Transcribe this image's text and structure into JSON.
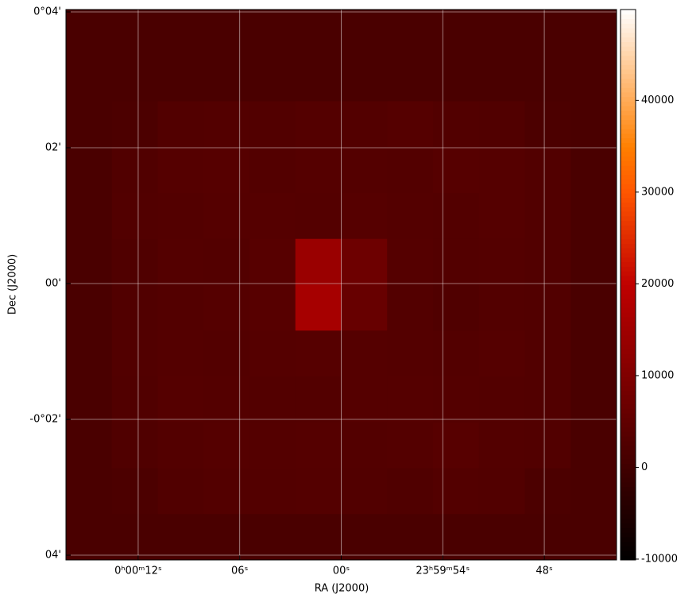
{
  "chart_data": {
    "type": "image",
    "colormap": "gist_heat",
    "xlabel": "RA (J2000)",
    "ylabel": "Dec (J2000)",
    "xlim": [
      16.27,
      -16.27
    ],
    "xticks": [
      {
        "value": 12,
        "label": "0ʰ00ᵐ12ˢ"
      },
      {
        "value": 6,
        "label": "06ˢ"
      },
      {
        "value": 0,
        "label": "00ˢ"
      },
      {
        "value": -6,
        "label": "23ʰ59ᵐ54ˢ"
      },
      {
        "value": -12,
        "label": "48ˢ"
      }
    ],
    "ylim": [
      -4.07,
      4.035
    ],
    "yticks": [
      {
        "value": 4,
        "label": "0°04'"
      },
      {
        "value": 2,
        "label": "02'"
      },
      {
        "value": 0,
        "label": "00'"
      },
      {
        "value": -2,
        "label": "-0°02'"
      },
      {
        "value": -4,
        "label": "04'"
      }
    ],
    "grid": true,
    "clim": [
      -10090,
      49900
    ],
    "cticks": [
      -10000,
      0,
      10000,
      20000,
      30000,
      40000
    ],
    "values": [
      [
        1500,
        1500,
        1500,
        1500,
        1500,
        1500,
        1500,
        1500,
        1500,
        1500,
        1500,
        1500
      ],
      [
        1500,
        1500,
        1500,
        1500,
        1500,
        1500,
        1500,
        1500,
        1500,
        1500,
        1500,
        1500
      ],
      [
        1500,
        1800,
        2800,
        3000,
        2700,
        3100,
        2900,
        3200,
        2800,
        2600,
        1800,
        1500
      ],
      [
        1500,
        2600,
        3200,
        3400,
        3000,
        3300,
        3100,
        3000,
        3400,
        3200,
        2700,
        1500
      ],
      [
        1500,
        2700,
        3000,
        3300,
        3200,
        3100,
        3400,
        3100,
        3000,
        3300,
        2800,
        1500
      ],
      [
        1500,
        2500,
        3100,
        3000,
        3500,
        14000,
        7000,
        3200,
        2900,
        3100,
        2700,
        1500
      ],
      [
        1500,
        2600,
        2900,
        3200,
        3600,
        16000,
        6000,
        3000,
        2500,
        3000,
        2800,
        1500
      ],
      [
        1500,
        2700,
        3100,
        3000,
        3300,
        3400,
        3200,
        3100,
        3000,
        3200,
        2700,
        1500
      ],
      [
        1500,
        2600,
        3200,
        3100,
        2900,
        3000,
        3300,
        3200,
        3100,
        3000,
        2800,
        1500
      ],
      [
        1500,
        2500,
        3000,
        3300,
        3100,
        3200,
        3000,
        3100,
        3600,
        3000,
        2700,
        1500
      ],
      [
        1500,
        1800,
        2600,
        3000,
        2900,
        3100,
        2700,
        2500,
        2900,
        2800,
        1800,
        1500
      ],
      [
        1500,
        1500,
        1500,
        1500,
        1500,
        1500,
        1500,
        1500,
        1500,
        1500,
        1500,
        1500
      ]
    ]
  }
}
